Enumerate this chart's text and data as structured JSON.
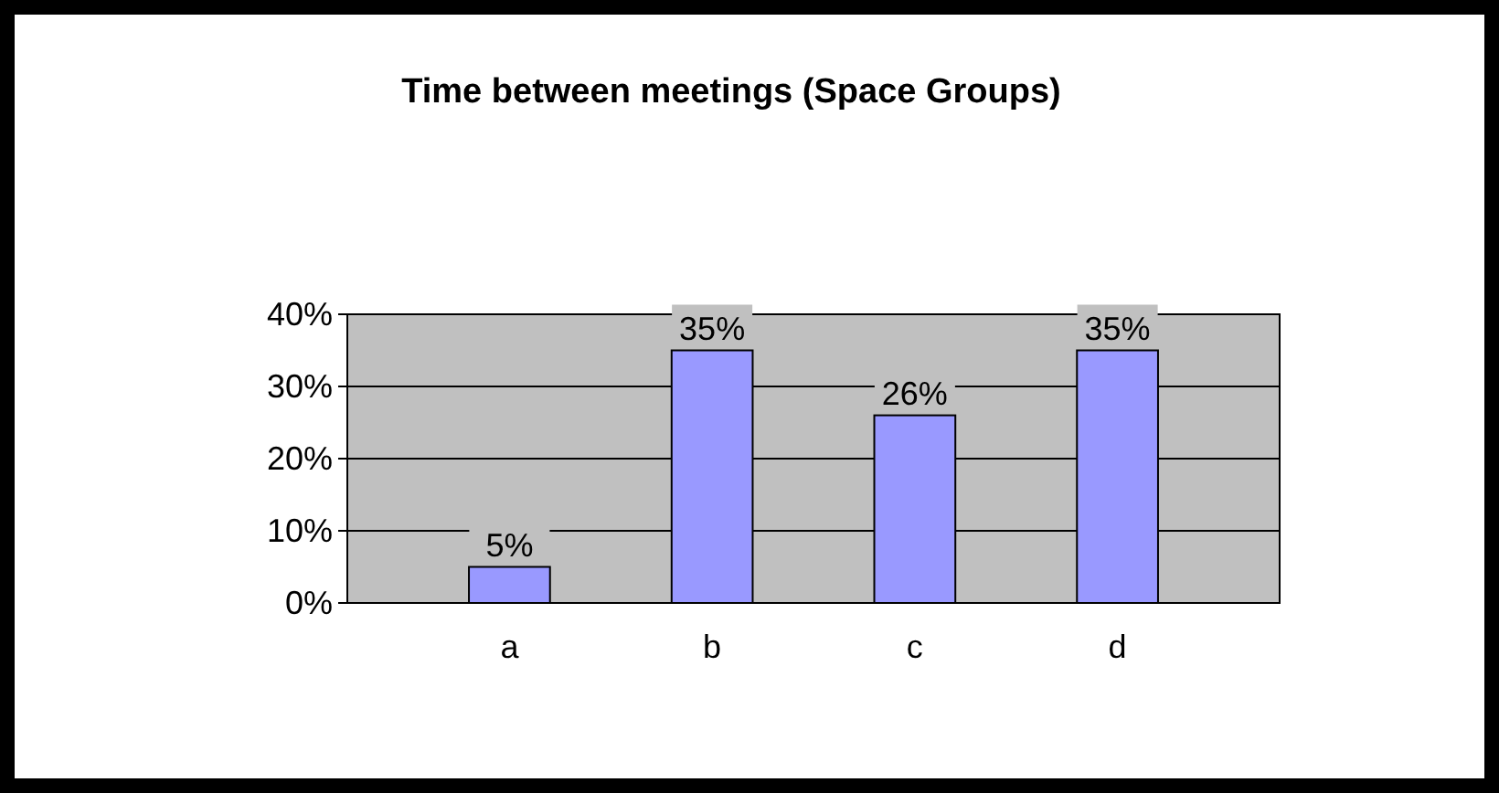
{
  "chart_data": {
    "type": "bar",
    "title": "Time between meetings (Space Groups)",
    "categories": [
      "a",
      "b",
      "c",
      "d"
    ],
    "values": [
      5,
      35,
      26,
      35
    ],
    "value_labels": [
      "5%",
      "35%",
      "26%",
      "35%"
    ],
    "color": "#9999ff",
    "ylim": [
      0,
      40
    ],
    "yticks": [
      {
        "value": 0,
        "label": "0%"
      },
      {
        "value": 10,
        "label": "10%"
      },
      {
        "value": 20,
        "label": "20%"
      },
      {
        "value": 30,
        "label": "30%"
      },
      {
        "value": 40,
        "label": "40%"
      }
    ],
    "grid": "y"
  }
}
